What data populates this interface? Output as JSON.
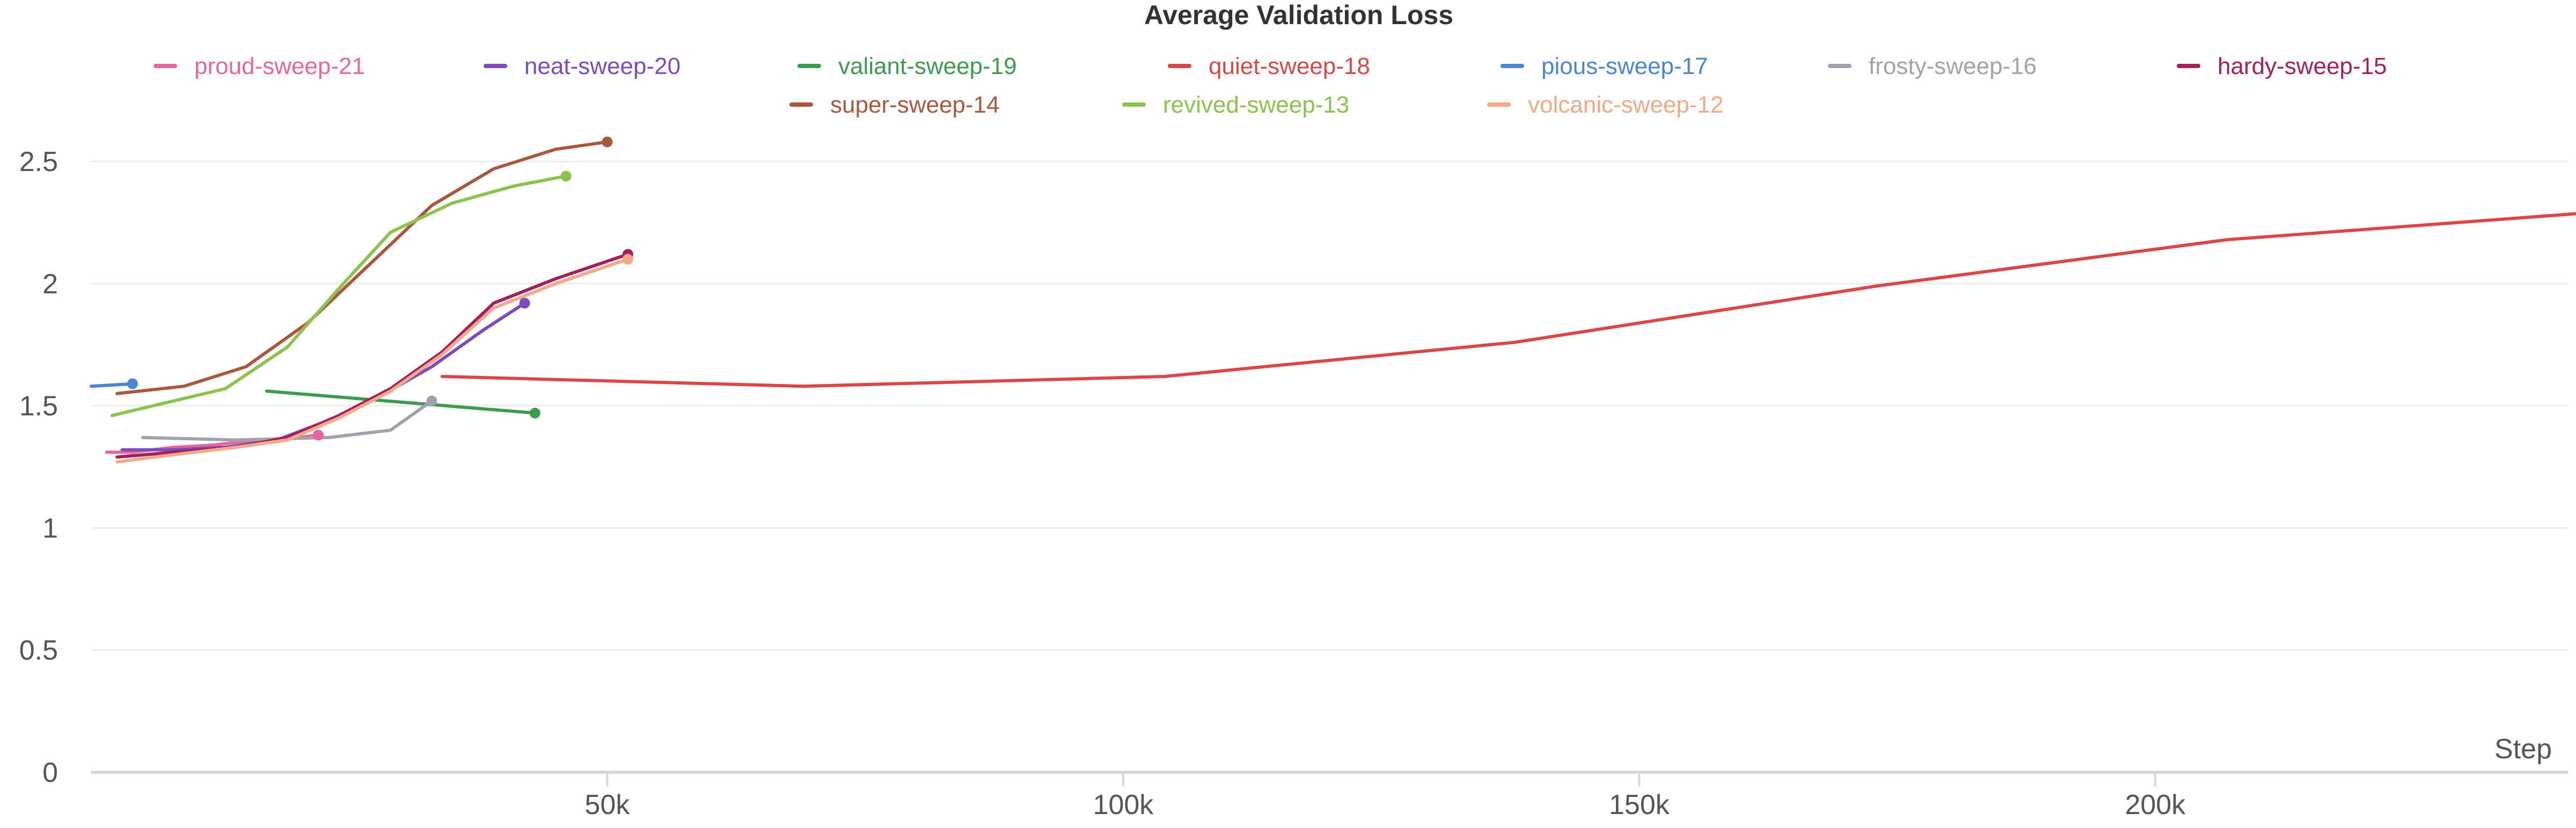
{
  "chart_data": {
    "type": "line",
    "title": "Average Validation Loss",
    "xlabel": "Step",
    "ylabel": "",
    "xlim": [
      0,
      240000
    ],
    "ylim": [
      0,
      2.7
    ],
    "grid": true,
    "legend_position": "top",
    "x_ticks": [
      {
        "value": 50000,
        "label": "50k"
      },
      {
        "value": 100000,
        "label": "100k"
      },
      {
        "value": 150000,
        "label": "150k"
      },
      {
        "value": 200000,
        "label": "200k"
      }
    ],
    "y_ticks": [
      {
        "value": 0,
        "label": "0"
      },
      {
        "value": 0.5,
        "label": "0.5"
      },
      {
        "value": 1,
        "label": "1"
      },
      {
        "value": 1.5,
        "label": "1.5"
      },
      {
        "value": 2,
        "label": "2"
      },
      {
        "value": 2.5,
        "label": "2.5"
      }
    ],
    "series": [
      {
        "name": "proud-sweep-21",
        "color": "#e8669a",
        "x": [
          1500,
          4000,
          8000,
          12000,
          16000,
          20000,
          22000
        ],
        "y": [
          1.31,
          1.31,
          1.33,
          1.34,
          1.36,
          1.37,
          1.38
        ]
      },
      {
        "name": "neat-sweep-20",
        "color": "#7c4bbf",
        "x": [
          3000,
          8000,
          13000,
          18000,
          23000,
          28000,
          33000,
          38000,
          42000
        ],
        "y": [
          1.32,
          1.32,
          1.33,
          1.36,
          1.44,
          1.54,
          1.66,
          1.81,
          1.92
        ]
      },
      {
        "name": "valiant-sweep-19",
        "color": "#3d9a50",
        "x": [
          17000,
          43000
        ],
        "y": [
          1.56,
          1.47
        ]
      },
      {
        "name": "quiet-sweep-18",
        "color": "#d94848",
        "x": [
          34000,
          69000,
          104000,
          138000,
          173000,
          207000,
          242000
        ],
        "y": [
          1.62,
          1.58,
          1.62,
          1.76,
          1.99,
          2.18,
          2.29
        ]
      },
      {
        "name": "pious-sweep-17",
        "color": "#4a86d4",
        "x": [
          0,
          4000
        ],
        "y": [
          1.58,
          1.59
        ]
      },
      {
        "name": "frosty-sweep-16",
        "color": "#a2a2ae",
        "x": [
          5000,
          14000,
          23000,
          29000,
          33000
        ],
        "y": [
          1.37,
          1.36,
          1.37,
          1.4,
          1.52
        ]
      },
      {
        "name": "hardy-sweep-15",
        "color": "#a3205a",
        "x": [
          2500,
          8000,
          14000,
          19000,
          24000,
          29000,
          34000,
          39000,
          45000,
          52000
        ],
        "y": [
          1.29,
          1.31,
          1.33,
          1.37,
          1.46,
          1.57,
          1.72,
          1.92,
          2.02,
          2.12
        ]
      },
      {
        "name": "super-sweep-14",
        "color": "#a95840",
        "x": [
          2500,
          9000,
          15000,
          21000,
          27000,
          33000,
          39000,
          45000,
          50000
        ],
        "y": [
          1.55,
          1.58,
          1.66,
          1.84,
          2.08,
          2.32,
          2.47,
          2.55,
          2.58
        ]
      },
      {
        "name": "revived-sweep-13",
        "color": "#8ec24f",
        "x": [
          2000,
          7000,
          13000,
          19000,
          24000,
          29000,
          35000,
          41000,
          46000
        ],
        "y": [
          1.46,
          1.51,
          1.57,
          1.74,
          1.98,
          2.21,
          2.33,
          2.4,
          2.44
        ]
      },
      {
        "name": "volcanic-sweep-12",
        "color": "#f2a98a",
        "x": [
          2500,
          8000,
          14000,
          19000,
          24000,
          29000,
          34000,
          39000,
          45000,
          52000
        ],
        "y": [
          1.27,
          1.3,
          1.33,
          1.36,
          1.45,
          1.56,
          1.71,
          1.9,
          2.0,
          2.1
        ]
      }
    ]
  }
}
